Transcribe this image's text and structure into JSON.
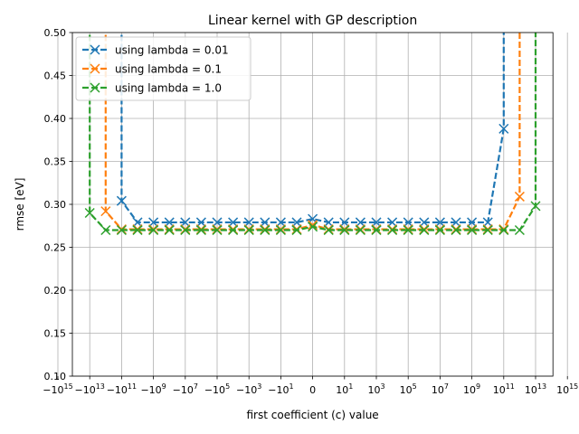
{
  "chart_data": {
    "type": "line",
    "title": "Linear kernel with GP description",
    "xlabel": "first coefficient (c) value",
    "ylabel": "rmse [eV]",
    "xscale": "symlog",
    "x_tick_values": [
      -1000000000000000.0,
      -10000000000000.0,
      -100000000000.0,
      -1000000000.0,
      -10000000.0,
      -100000.0,
      -1000.0,
      -10,
      0,
      10,
      1000.0,
      100000.0,
      10000000.0,
      1000000000.0,
      100000000000.0,
      10000000000000.0,
      1000000000000000.0
    ],
    "x_tick_labels": [
      {
        "base": "−10",
        "exp": "15"
      },
      {
        "base": "−10",
        "exp": "13"
      },
      {
        "base": "−10",
        "exp": "11"
      },
      {
        "base": "−10",
        "exp": "9"
      },
      {
        "base": "−10",
        "exp": "7"
      },
      {
        "base": "−10",
        "exp": "5"
      },
      {
        "base": "−10",
        "exp": "3"
      },
      {
        "base": "−10",
        "exp": "1"
      },
      {
        "base": "0",
        "exp": ""
      },
      {
        "base": "10",
        "exp": "1"
      },
      {
        "base": "10",
        "exp": "3"
      },
      {
        "base": "10",
        "exp": "5"
      },
      {
        "base": "10",
        "exp": "7"
      },
      {
        "base": "10",
        "exp": "9"
      },
      {
        "base": "10",
        "exp": "11"
      },
      {
        "base": "10",
        "exp": "13"
      },
      {
        "base": "10",
        "exp": "15"
      }
    ],
    "ylim": [
      0.1,
      0.5
    ],
    "y_ticks": [
      0.1,
      0.15,
      0.2,
      0.25,
      0.3,
      0.35,
      0.4,
      0.45,
      0.5
    ],
    "y_tick_labels": [
      "0.10",
      "0.15",
      "0.20",
      "0.25",
      "0.30",
      "0.35",
      "0.40",
      "0.45",
      "0.50"
    ],
    "grid": true,
    "legend_position": "top-left",
    "series": [
      {
        "name": "using lambda = 0.01",
        "color": "#1f77b4",
        "marker": "x",
        "linestyle": "dashed",
        "points": [
          [
            -100000000000.0,
            0.55
          ],
          [
            -100000000000.0,
            0.304
          ],
          [
            -10000000000.0,
            0.279
          ],
          [
            -1000000000.0,
            0.279
          ],
          [
            -100000000.0,
            0.279
          ],
          [
            -10000000.0,
            0.279
          ],
          [
            -1000000.0,
            0.279
          ],
          [
            -100000.0,
            0.279
          ],
          [
            -10000.0,
            0.279
          ],
          [
            -1000.0,
            0.279
          ],
          [
            -100,
            0.279
          ],
          [
            -10,
            0.279
          ],
          [
            -1,
            0.279
          ],
          [
            0,
            0.283
          ],
          [
            1,
            0.279
          ],
          [
            10,
            0.279
          ],
          [
            100,
            0.279
          ],
          [
            1000.0,
            0.279
          ],
          [
            10000.0,
            0.279
          ],
          [
            100000.0,
            0.279
          ],
          [
            1000000.0,
            0.279
          ],
          [
            10000000.0,
            0.279
          ],
          [
            100000000.0,
            0.279
          ],
          [
            1000000000.0,
            0.279
          ],
          [
            10000000000.0,
            0.279
          ],
          [
            100000000000.0,
            0.388
          ],
          [
            100000000000.0,
            0.55
          ]
        ]
      },
      {
        "name": "using lambda = 0.1",
        "color": "#ff7f0e",
        "marker": "x",
        "linestyle": "dashed",
        "points": [
          [
            -1000000000000.0,
            0.55
          ],
          [
            -1000000000000.0,
            0.292
          ],
          [
            -100000000000.0,
            0.271
          ],
          [
            -10000000000.0,
            0.271
          ],
          [
            -1000000000.0,
            0.271
          ],
          [
            -100000000.0,
            0.271
          ],
          [
            -10000000.0,
            0.271
          ],
          [
            -1000000.0,
            0.271
          ],
          [
            -100000.0,
            0.271
          ],
          [
            -10000.0,
            0.271
          ],
          [
            -1000.0,
            0.271
          ],
          [
            -100,
            0.271
          ],
          [
            -10,
            0.271
          ],
          [
            -1,
            0.271
          ],
          [
            0,
            0.276
          ],
          [
            1,
            0.271
          ],
          [
            10,
            0.271
          ],
          [
            100,
            0.271
          ],
          [
            1000.0,
            0.271
          ],
          [
            10000.0,
            0.271
          ],
          [
            100000.0,
            0.271
          ],
          [
            1000000.0,
            0.271
          ],
          [
            10000000.0,
            0.271
          ],
          [
            100000000.0,
            0.271
          ],
          [
            1000000000.0,
            0.271
          ],
          [
            10000000000.0,
            0.271
          ],
          [
            100000000000.0,
            0.271
          ],
          [
            1000000000000.0,
            0.309
          ],
          [
            1000000000000.0,
            0.55
          ]
        ]
      },
      {
        "name": "using lambda = 1.0",
        "color": "#2ca02c",
        "marker": "x",
        "linestyle": "dashed",
        "points": [
          [
            -10000000000000.0,
            0.55
          ],
          [
            -10000000000000.0,
            0.29
          ],
          [
            -1000000000000.0,
            0.27
          ],
          [
            -100000000000.0,
            0.27
          ],
          [
            -10000000000.0,
            0.27
          ],
          [
            -1000000000.0,
            0.27
          ],
          [
            -100000000.0,
            0.27
          ],
          [
            -10000000.0,
            0.27
          ],
          [
            -1000000.0,
            0.27
          ],
          [
            -100000.0,
            0.27
          ],
          [
            -10000.0,
            0.27
          ],
          [
            -1000.0,
            0.27
          ],
          [
            -100,
            0.27
          ],
          [
            -10,
            0.27
          ],
          [
            -1,
            0.27
          ],
          [
            0,
            0.274
          ],
          [
            1,
            0.27
          ],
          [
            10,
            0.27
          ],
          [
            100,
            0.27
          ],
          [
            1000.0,
            0.27
          ],
          [
            10000.0,
            0.27
          ],
          [
            100000.0,
            0.27
          ],
          [
            1000000.0,
            0.27
          ],
          [
            10000000.0,
            0.27
          ],
          [
            100000000.0,
            0.27
          ],
          [
            1000000000.0,
            0.27
          ],
          [
            10000000000.0,
            0.27
          ],
          [
            100000000000.0,
            0.27
          ],
          [
            1000000000000.0,
            0.27
          ],
          [
            10000000000000.0,
            0.298
          ],
          [
            10000000000000.0,
            0.55
          ]
        ]
      }
    ]
  }
}
